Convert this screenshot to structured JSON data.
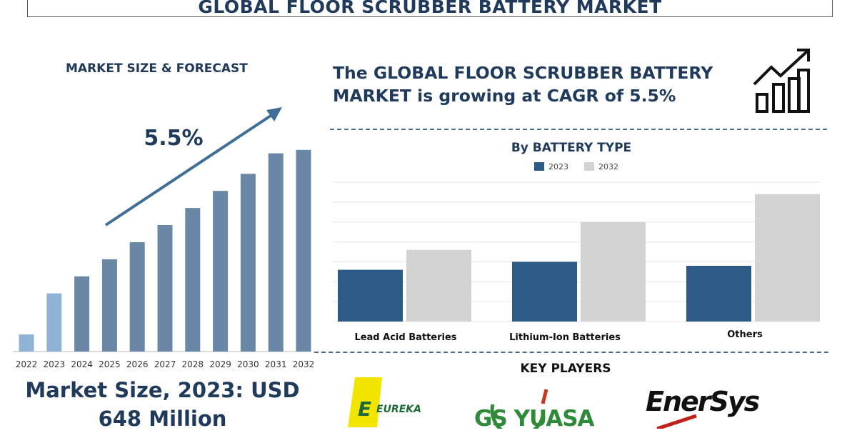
{
  "title": "GLOBAL FLOOR SCRUBBER BATTERY MARKET",
  "left_panel": {
    "title": "MARKET SIZE & FORECAST",
    "cagr_label": "5.5%",
    "market_size_line1": "Market Size, 2023: USD",
    "market_size_line2": "648 Million"
  },
  "headline": {
    "line1": "The GLOBAL FLOOR SCRUBBER BATTERY",
    "line2": "MARKET is growing at CAGR of 5.5%"
  },
  "key_players_title": "KEY PLAYERS",
  "logos": {
    "eureka": "EUREKA",
    "gsyuasa": "GS YUASA",
    "enersys": "EnerSys"
  },
  "colors": {
    "navy": "#1f3a5a",
    "bar_dark": "#2d5a87",
    "bar_light": "#d3d3d3",
    "forecast_bar": "#6a87a6",
    "highlight_bar": "#8fb3d6"
  },
  "chart_data": [
    {
      "type": "bar",
      "title": "MARKET SIZE & FORECAST",
      "categories": [
        "2022",
        "2023",
        "2024",
        "2025",
        "2026",
        "2027",
        "2028",
        "2029",
        "2030",
        "2031",
        "2032"
      ],
      "values": [
        1.0,
        3.4,
        4.4,
        5.4,
        6.4,
        7.4,
        8.4,
        9.4,
        10.4,
        11.6,
        11.8
      ],
      "ylim": [
        0,
        12
      ],
      "annotation": "5.5%"
    },
    {
      "type": "bar",
      "title": "By BATTERY TYPE",
      "categories": [
        "Lead Acid Batteries",
        "Lithium-Ion Batteries",
        "Others"
      ],
      "series": [
        {
          "name": "2023",
          "values": [
            1.3,
            1.5,
            1.4
          ]
        },
        {
          "name": "2032",
          "values": [
            1.8,
            2.5,
            3.2
          ]
        }
      ],
      "ylim": [
        0,
        3.5
      ],
      "grid": true,
      "legend": "top-center"
    }
  ]
}
